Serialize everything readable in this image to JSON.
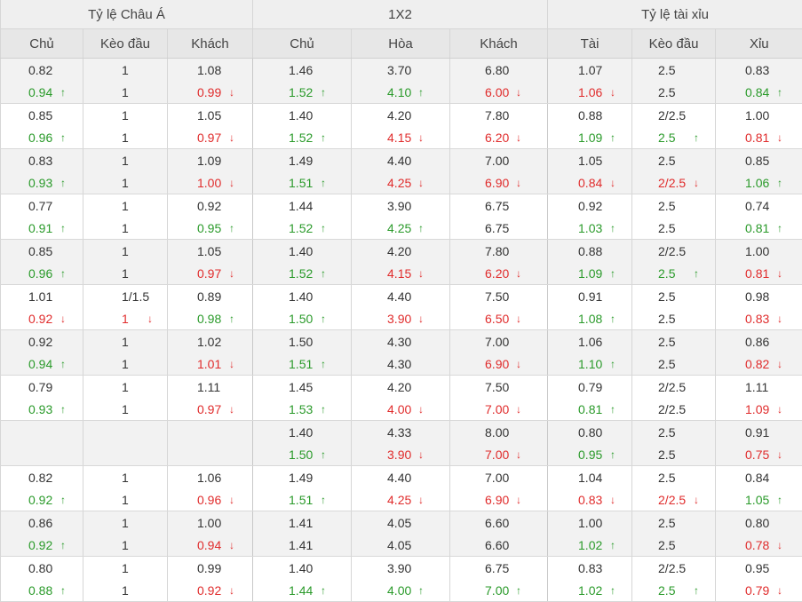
{
  "header": {
    "groups": [
      "Tỷ lệ Châu Á",
      "1X2",
      "Tỷ lệ tài xỉu"
    ],
    "columns": [
      "Chủ",
      "Kèo đầu",
      "Khách",
      "Chủ",
      "Hòa",
      "Khách",
      "Tài",
      "Kèo đầu",
      "Xỉu"
    ]
  },
  "rows": [
    {
      "open": [
        "0.82",
        "1",
        "1.08",
        "1.46",
        "3.70",
        "6.80",
        "1.07",
        "2.5",
        "0.83"
      ],
      "live": [
        [
          "0.94",
          "up"
        ],
        [
          "1",
          ""
        ],
        [
          "0.99",
          "down"
        ],
        [
          "1.52",
          "up"
        ],
        [
          "4.10",
          "up"
        ],
        [
          "6.00",
          "down"
        ],
        [
          "1.06",
          "down"
        ],
        [
          "2.5",
          ""
        ],
        [
          "0.84",
          "up"
        ]
      ]
    },
    {
      "open": [
        "0.85",
        "1",
        "1.05",
        "1.40",
        "4.20",
        "7.80",
        "0.88",
        "2/2.5",
        "1.00"
      ],
      "live": [
        [
          "0.96",
          "up"
        ],
        [
          "1",
          ""
        ],
        [
          "0.97",
          "down"
        ],
        [
          "1.52",
          "up"
        ],
        [
          "4.15",
          "down"
        ],
        [
          "6.20",
          "down"
        ],
        [
          "1.09",
          "up"
        ],
        [
          "2.5",
          "up"
        ],
        [
          "0.81",
          "down"
        ]
      ]
    },
    {
      "open": [
        "0.83",
        "1",
        "1.09",
        "1.49",
        "4.40",
        "7.00",
        "1.05",
        "2.5",
        "0.85"
      ],
      "live": [
        [
          "0.93",
          "up"
        ],
        [
          "1",
          ""
        ],
        [
          "1.00",
          "down"
        ],
        [
          "1.51",
          "up"
        ],
        [
          "4.25",
          "down"
        ],
        [
          "6.90",
          "down"
        ],
        [
          "0.84",
          "down"
        ],
        [
          "2/2.5",
          "down"
        ],
        [
          "1.06",
          "up"
        ]
      ]
    },
    {
      "open": [
        "0.77",
        "1",
        "0.92",
        "1.44",
        "3.90",
        "6.75",
        "0.92",
        "2.5",
        "0.74"
      ],
      "live": [
        [
          "0.91",
          "up"
        ],
        [
          "1",
          ""
        ],
        [
          "0.95",
          "up"
        ],
        [
          "1.52",
          "up"
        ],
        [
          "4.25",
          "up"
        ],
        [
          "6.75",
          ""
        ],
        [
          "1.03",
          "up"
        ],
        [
          "2.5",
          ""
        ],
        [
          "0.81",
          "up"
        ]
      ]
    },
    {
      "open": [
        "0.85",
        "1",
        "1.05",
        "1.40",
        "4.20",
        "7.80",
        "0.88",
        "2/2.5",
        "1.00"
      ],
      "live": [
        [
          "0.96",
          "up"
        ],
        [
          "1",
          ""
        ],
        [
          "0.97",
          "down"
        ],
        [
          "1.52",
          "up"
        ],
        [
          "4.15",
          "down"
        ],
        [
          "6.20",
          "down"
        ],
        [
          "1.09",
          "up"
        ],
        [
          "2.5",
          "up"
        ],
        [
          "0.81",
          "down"
        ]
      ]
    },
    {
      "open": [
        "1.01",
        "1/1.5",
        "0.89",
        "1.40",
        "4.40",
        "7.50",
        "0.91",
        "2.5",
        "0.98"
      ],
      "live": [
        [
          "0.92",
          "down"
        ],
        [
          "1",
          "down"
        ],
        [
          "0.98",
          "up"
        ],
        [
          "1.50",
          "up"
        ],
        [
          "3.90",
          "down"
        ],
        [
          "6.50",
          "down"
        ],
        [
          "1.08",
          "up"
        ],
        [
          "2.5",
          ""
        ],
        [
          "0.83",
          "down"
        ]
      ]
    },
    {
      "open": [
        "0.92",
        "1",
        "1.02",
        "1.50",
        "4.30",
        "7.00",
        "1.06",
        "2.5",
        "0.86"
      ],
      "live": [
        [
          "0.94",
          "up"
        ],
        [
          "1",
          ""
        ],
        [
          "1.01",
          "down"
        ],
        [
          "1.51",
          "up"
        ],
        [
          "4.30",
          ""
        ],
        [
          "6.90",
          "down"
        ],
        [
          "1.10",
          "up"
        ],
        [
          "2.5",
          ""
        ],
        [
          "0.82",
          "down"
        ]
      ]
    },
    {
      "open": [
        "0.79",
        "1",
        "1.11",
        "1.45",
        "4.20",
        "7.50",
        "0.79",
        "2/2.5",
        "1.11"
      ],
      "live": [
        [
          "0.93",
          "up"
        ],
        [
          "1",
          ""
        ],
        [
          "0.97",
          "down"
        ],
        [
          "1.53",
          "up"
        ],
        [
          "4.00",
          "down"
        ],
        [
          "7.00",
          "down"
        ],
        [
          "0.81",
          "up"
        ],
        [
          "2/2.5",
          ""
        ],
        [
          "1.09",
          "down"
        ]
      ]
    },
    {
      "open": [
        "",
        "",
        "",
        "1.40",
        "4.33",
        "8.00",
        "0.80",
        "2.5",
        "0.91"
      ],
      "live": [
        [
          "",
          ""
        ],
        [
          "",
          ""
        ],
        [
          "",
          ""
        ],
        [
          "1.50",
          "up"
        ],
        [
          "3.90",
          "down"
        ],
        [
          "7.00",
          "down"
        ],
        [
          "0.95",
          "up"
        ],
        [
          "2.5",
          ""
        ],
        [
          "0.75",
          "down"
        ]
      ]
    },
    {
      "open": [
        "0.82",
        "1",
        "1.06",
        "1.49",
        "4.40",
        "7.00",
        "1.04",
        "2.5",
        "0.84"
      ],
      "live": [
        [
          "0.92",
          "up"
        ],
        [
          "1",
          ""
        ],
        [
          "0.96",
          "down"
        ],
        [
          "1.51",
          "up"
        ],
        [
          "4.25",
          "down"
        ],
        [
          "6.90",
          "down"
        ],
        [
          "0.83",
          "down"
        ],
        [
          "2/2.5",
          "down"
        ],
        [
          "1.05",
          "up"
        ]
      ]
    },
    {
      "open": [
        "0.86",
        "1",
        "1.00",
        "1.41",
        "4.05",
        "6.60",
        "1.00",
        "2.5",
        "0.80"
      ],
      "live": [
        [
          "0.92",
          "up"
        ],
        [
          "1",
          ""
        ],
        [
          "0.94",
          "down"
        ],
        [
          "1.41",
          ""
        ],
        [
          "4.05",
          ""
        ],
        [
          "6.60",
          ""
        ],
        [
          "1.02",
          "up"
        ],
        [
          "2.5",
          ""
        ],
        [
          "0.78",
          "down"
        ]
      ]
    },
    {
      "open": [
        "0.80",
        "1",
        "0.99",
        "1.40",
        "3.90",
        "6.75",
        "0.83",
        "2/2.5",
        "0.95"
      ],
      "live": [
        [
          "0.88",
          "up"
        ],
        [
          "1",
          ""
        ],
        [
          "0.92",
          "down"
        ],
        [
          "1.44",
          "up"
        ],
        [
          "4.00",
          "up"
        ],
        [
          "7.00",
          "up"
        ],
        [
          "1.02",
          "up"
        ],
        [
          "2.5",
          "up"
        ],
        [
          "0.79",
          "down"
        ]
      ]
    }
  ],
  "icons": {
    "up": "arrow-up-icon",
    "down": "arrow-down-icon"
  },
  "colors": {
    "up": "#2a9a2a",
    "down": "#e02c2c",
    "header_bg": "#efefef",
    "shaded_row": "#f2f2f2"
  }
}
